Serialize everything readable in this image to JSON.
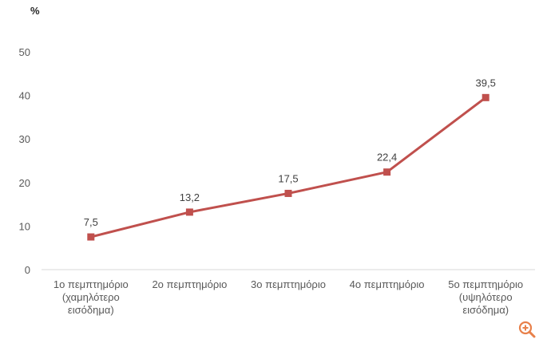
{
  "chart_data": {
    "type": "line",
    "unit_label": "%",
    "categories": [
      [
        "1ο πεμπτημόριο",
        "(χαμηλότερο",
        "εισόδημα)"
      ],
      [
        "2ο πεμπτημόριο"
      ],
      [
        "3ο πεμπτημόριο"
      ],
      [
        "4ο πεμπτημόριο"
      ],
      [
        "5ο πεμπτημόριο",
        "(υψηλότερο",
        "εισόδημα)"
      ]
    ],
    "series": [
      {
        "values": [
          7.5,
          13.2,
          17.5,
          22.4,
          39.5
        ],
        "labels": [
          "7,5",
          "13,2",
          "17,5",
          "22,4",
          "39,5"
        ]
      }
    ],
    "yticks": [
      0,
      10,
      20,
      30,
      40,
      50
    ],
    "ylim": [
      0,
      50
    ],
    "grid": false,
    "legend": "none",
    "line_color": "#c0504d"
  },
  "zoom_icon": "zoom-in-icon",
  "zoom_color": "#e8804a"
}
